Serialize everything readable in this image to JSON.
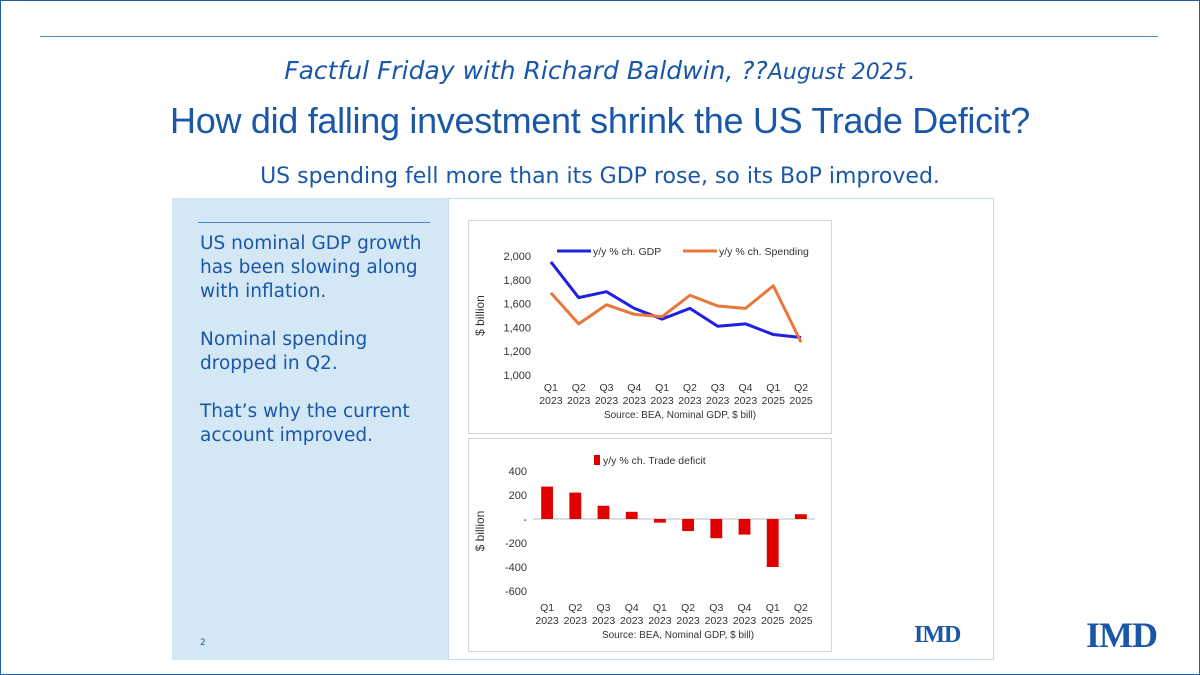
{
  "header": {
    "series_line_prefix": "Factful Friday with Richard Baldwin, ??",
    "series_line_date": "August 2025",
    "series_line_suffix": ".",
    "title": "How did falling investment shrink the US Trade Deficit?",
    "subtitle": "US spending fell more than its GDP rose, so its BoP improved."
  },
  "sidebar": {
    "paragraphs": [
      "US nominal GDP growth has been slowing along with inflation.",
      "Nominal spending dropped in Q2.",
      "That’s why the current account improved."
    ],
    "page_number": "2"
  },
  "logos": {
    "small": "IMD",
    "large": "IMD"
  },
  "colors": {
    "brand": "#1a57a8",
    "gdp": "#2020e0",
    "spending": "#e8773a",
    "deficit": "#e00000"
  },
  "chart_data": [
    {
      "type": "line",
      "categories": [
        [
          "Q1",
          "2023"
        ],
        [
          "Q2",
          "2023"
        ],
        [
          "Q3",
          "2023"
        ],
        [
          "Q4",
          "2023"
        ],
        [
          "Q1",
          "2023"
        ],
        [
          "Q2",
          "2023"
        ],
        [
          "Q3",
          "2023"
        ],
        [
          "Q4",
          "2023"
        ],
        [
          "Q1",
          "2025"
        ],
        [
          "Q2",
          "2025"
        ]
      ],
      "series": [
        {
          "name": "y/y % ch. GDP",
          "color": "#2020e0",
          "values": [
            1950,
            1650,
            1700,
            1560,
            1470,
            1560,
            1410,
            1430,
            1340,
            1315
          ]
        },
        {
          "name": "y/y % ch.  Spending",
          "color": "#e8773a",
          "values": [
            1690,
            1430,
            1590,
            1510,
            1490,
            1670,
            1580,
            1560,
            1750,
            1275
          ]
        }
      ],
      "ylabel": "$ billion",
      "ylim": [
        1000,
        2000
      ],
      "yticks": [
        "1,000",
        "1,200",
        "1,400",
        "1,600",
        "1,800",
        "2,000"
      ],
      "ytick_values": [
        1000,
        1200,
        1400,
        1600,
        1800,
        2000
      ],
      "source": "Source: BEA, Nominal GDP, $ bill)",
      "legend_position": "top",
      "grid": false
    },
    {
      "type": "bar",
      "categories": [
        [
          "Q1",
          "2023"
        ],
        [
          "Q2",
          "2023"
        ],
        [
          "Q3",
          "2023"
        ],
        [
          "Q4",
          "2023"
        ],
        [
          "Q1",
          "2023"
        ],
        [
          "Q2",
          "2023"
        ],
        [
          "Q3",
          "2023"
        ],
        [
          "Q4",
          "2023"
        ],
        [
          "Q1",
          "2025"
        ],
        [
          "Q2",
          "2025"
        ]
      ],
      "series": [
        {
          "name": "y/y % ch. Trade deficit",
          "color": "#e00000",
          "values": [
            270,
            220,
            110,
            60,
            -30,
            -100,
            -160,
            -130,
            -400,
            40
          ]
        }
      ],
      "ylabel": "$ billion",
      "ylim": [
        -600,
        400
      ],
      "yticks": [
        "400",
        "200",
        "-",
        "-200",
        "-400",
        "-600"
      ],
      "ytick_values": [
        400,
        200,
        0,
        -200,
        -400,
        -600
      ],
      "source": "Source: BEA, Nominal GDP, $ bill)",
      "legend_position": "top",
      "grid": false
    }
  ]
}
